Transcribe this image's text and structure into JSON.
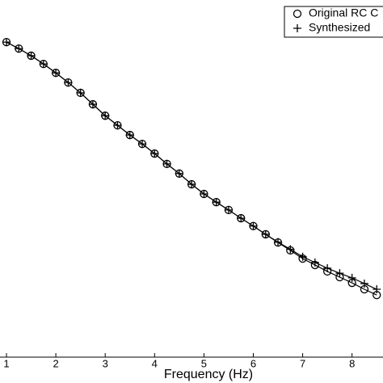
{
  "chart_data": {
    "type": "line",
    "x_label": "Frequency (Hz)",
    "x": [
      1,
      1.25,
      1.5,
      1.75,
      2,
      2.25,
      2.5,
      2.75,
      3,
      3.25,
      3.5,
      3.75,
      4,
      4.25,
      4.5,
      4.75,
      5,
      5.25,
      5.5,
      5.75,
      6,
      6.25,
      6.5,
      6.75,
      7,
      7.25,
      7.5,
      7.75,
      8,
      8.25,
      8.5
    ],
    "series": [
      {
        "name": "Original RC C",
        "color": "#000000",
        "marker": "circle",
        "values": [
          0.882,
          0.864,
          0.844,
          0.821,
          0.796,
          0.769,
          0.74,
          0.708,
          0.676,
          0.649,
          0.622,
          0.597,
          0.57,
          0.541,
          0.514,
          0.484,
          0.457,
          0.434,
          0.412,
          0.389,
          0.367,
          0.344,
          0.321,
          0.299,
          0.276,
          0.258,
          0.24,
          0.224,
          0.208,
          0.19,
          0.174
        ]
      },
      {
        "name": "Synthesized",
        "color": "#000000",
        "marker": "plus",
        "values": [
          0.882,
          0.864,
          0.844,
          0.821,
          0.796,
          0.769,
          0.74,
          0.708,
          0.676,
          0.649,
          0.622,
          0.597,
          0.57,
          0.541,
          0.514,
          0.484,
          0.457,
          0.434,
          0.412,
          0.389,
          0.367,
          0.344,
          0.322,
          0.302,
          0.281,
          0.265,
          0.249,
          0.235,
          0.222,
          0.206,
          0.19
        ]
      }
    ],
    "xlim": [
      0.869,
      8.627
    ],
    "xticks": [
      1,
      2,
      3,
      4,
      5,
      6,
      7,
      8
    ],
    "ylim": [
      0,
      1
    ]
  }
}
